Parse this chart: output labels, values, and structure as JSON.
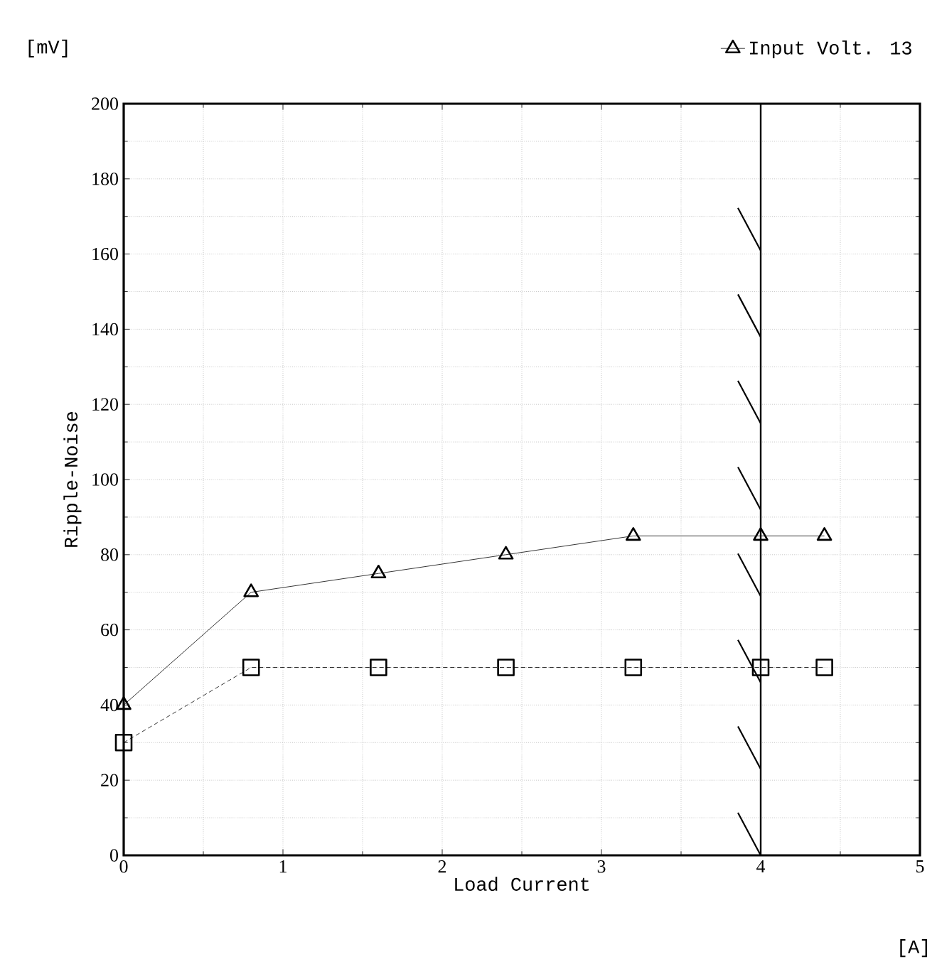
{
  "chart_data": {
    "type": "line",
    "xlabel": "Load Current",
    "ylabel": "Ripple-Noise",
    "annotations": [
      "[mV]",
      "[A]"
    ],
    "x": [
      0,
      0.8,
      1.6,
      2.4,
      3.2,
      4.0,
      4.4
    ],
    "series": [
      {
        "name": "Input Volt. 13",
        "color": "#000000",
        "marker": "triangle",
        "line_style": "solid",
        "values": [
          40,
          70,
          75,
          80,
          85,
          85,
          85
        ]
      },
      {
        "color": "#000000",
        "marker": "square",
        "line_style": "dashed",
        "values": [
          30,
          50,
          50,
          50,
          50,
          50,
          50
        ]
      }
    ],
    "xlim": [
      0,
      5
    ],
    "xticks": [
      0,
      1,
      2,
      3,
      4,
      5
    ],
    "ylim": [
      0,
      200
    ],
    "yticks": [
      0,
      20,
      40,
      60,
      80,
      100,
      120,
      140,
      160,
      180,
      200
    ],
    "ref_lines": [
      {
        "axis": "x",
        "value": 4,
        "color": "#000000",
        "line_style": "solid"
      }
    ],
    "grid": true,
    "legend": "top right"
  }
}
